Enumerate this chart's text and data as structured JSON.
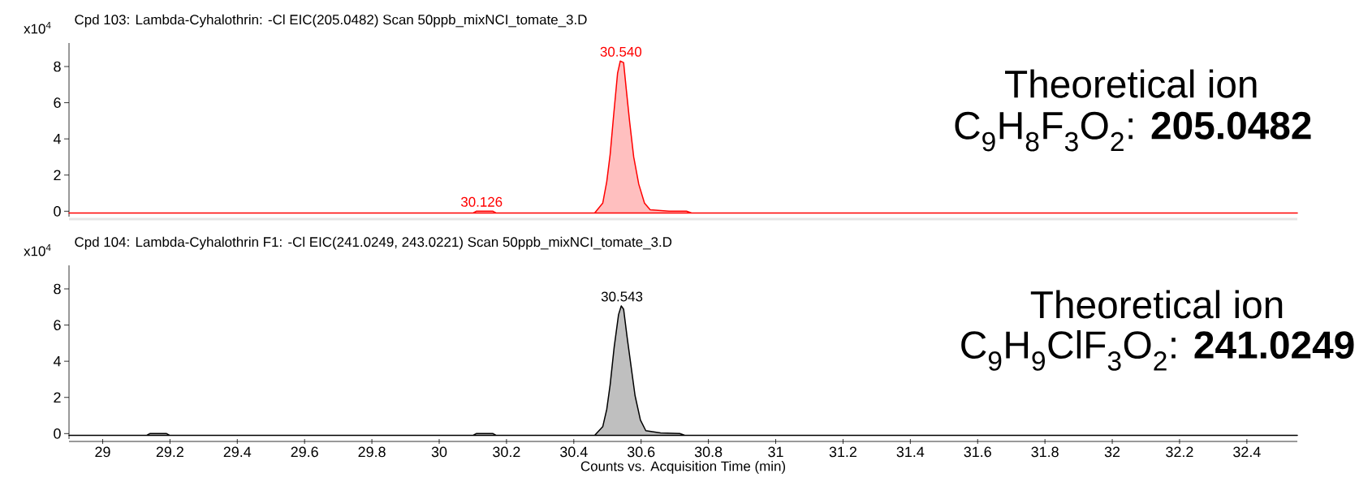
{
  "chart_data": [
    {
      "type": "area",
      "title": "Cpd 103: Lambda-Cyhalothrin: -Cl EIC(205.0482) Scan 50ppb_mixNCI_tomate_3.D",
      "ylabel": "x10$^{4}$",
      "color": "#ff0000",
      "x": [
        28.9,
        30.1,
        30.11,
        30.16,
        30.17,
        30.462,
        30.486,
        30.498,
        30.508,
        30.518,
        30.53,
        30.538,
        30.548,
        30.556,
        30.566,
        30.578,
        30.593,
        30.61,
        30.627,
        30.683,
        30.735,
        30.75,
        32.55
      ],
      "values": [
        -0.1,
        -0.1,
        0,
        0,
        -0.1,
        -0.1,
        0.45,
        1.65,
        3.14,
        5.23,
        7.62,
        8.3,
        8.22,
        6.73,
        4.93,
        3.0,
        1.5,
        0.45,
        0.08,
        0.0,
        0.0,
        -0.1,
        -0.1
      ],
      "xlim": [
        28.9,
        32.55
      ],
      "ylim": [
        -0.3,
        9.3
      ],
      "yticks": [
        0,
        2,
        4,
        6,
        8
      ],
      "tick_labels": "y",
      "annotations": [
        {
          "text": "30.540",
          "x": 30.54,
          "y": 8.3
        },
        {
          "text": "30.126",
          "x": 30.126,
          "y": 0
        },
        "Theoretical ion",
        "C$_{9}$H$_{8}$F$_{3}$O$_{2}$: **205.0482**"
      ]
    },
    {
      "type": "area",
      "title": "Cpd 104: Lambda-Cyhalothrin F1: -Cl EIC(241.0249, 243.0221) Scan 50ppb_mixNCI_tomate_3.D",
      "ylabel": "x10$^{4}$",
      "xlabel": "Counts vs. Acquisition Time (min)",
      "color": "#000000",
      "x": [
        28.9,
        29.13,
        29.14,
        29.19,
        29.2,
        30.1,
        30.11,
        30.16,
        30.17,
        30.462,
        30.486,
        30.498,
        30.508,
        30.52,
        30.533,
        30.541,
        30.548,
        30.558,
        30.57,
        30.582,
        30.598,
        30.614,
        30.658,
        30.715,
        30.73,
        32.55
      ],
      "values": [
        -0.1,
        -0.1,
        0,
        0,
        -0.1,
        -0.1,
        0,
        0,
        -0.1,
        -0.1,
        0.38,
        1.35,
        2.7,
        4.79,
        6.58,
        7.06,
        6.88,
        5.39,
        3.74,
        2.1,
        0.75,
        0.16,
        0.04,
        0.0,
        -0.1,
        -0.1
      ],
      "xlim": [
        28.9,
        32.55
      ],
      "ylim": [
        -0.3,
        9.3
      ],
      "yticks": [
        0,
        2,
        4,
        6,
        8
      ],
      "xticks": [
        29,
        29.2,
        29.4,
        29.6,
        29.8,
        30,
        30.2,
        30.4,
        30.6,
        30.8,
        31,
        31.2,
        31.4,
        31.6,
        31.8,
        32,
        32.2,
        32.4
      ],
      "annotations": [
        {
          "text": "30.543",
          "x": 30.543,
          "y": 7.06
        },
        "Theoretical ion",
        "C$_{9}$H$_{9}$ClF$_{3}$O$_{2}$: **241.0249**"
      ]
    }
  ]
}
